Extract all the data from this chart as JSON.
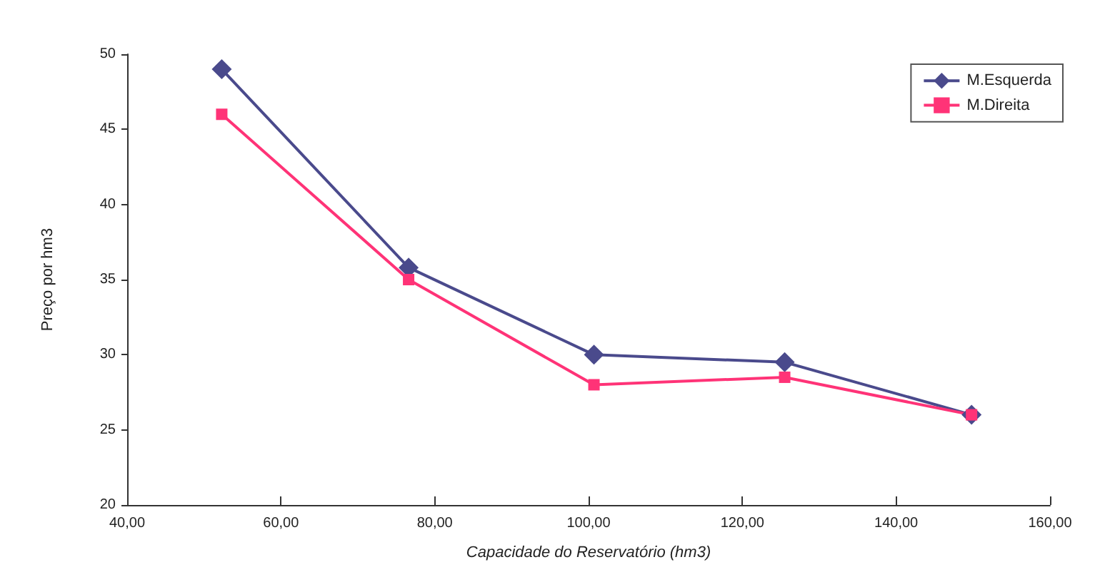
{
  "chart_data": {
    "type": "line",
    "xlabel": "Capacidade do Reservatório (hm3)",
    "ylabel": "Preço por hm3",
    "xlim": [
      40,
      160
    ],
    "xticks": [
      {
        "value": 40,
        "label": "40,00"
      },
      {
        "value": 60,
        "label": "60,00"
      },
      {
        "value": 80,
        "label": "80,00"
      },
      {
        "value": 100,
        "label": "100,00"
      },
      {
        "value": 120,
        "label": "120,00"
      },
      {
        "value": 140,
        "label": "140,00"
      },
      {
        "value": 160,
        "label": "160,00"
      }
    ],
    "ylim": [
      20,
      50
    ],
    "yticks": [
      20,
      25,
      30,
      35,
      40,
      45,
      50
    ],
    "x": [
      52.3,
      76.6,
      100.7,
      125.5,
      149.8
    ],
    "grid": false,
    "legend": "top right",
    "series": [
      {
        "name": "M.Esquerda",
        "color": "#4a4a8c",
        "marker": "diamond",
        "values": [
          49,
          35.8,
          30,
          29.5,
          26
        ]
      },
      {
        "name": "M.Direita",
        "color": "#ff3377",
        "marker": "square",
        "values": [
          46,
          35,
          28,
          28.5,
          26
        ]
      }
    ]
  }
}
